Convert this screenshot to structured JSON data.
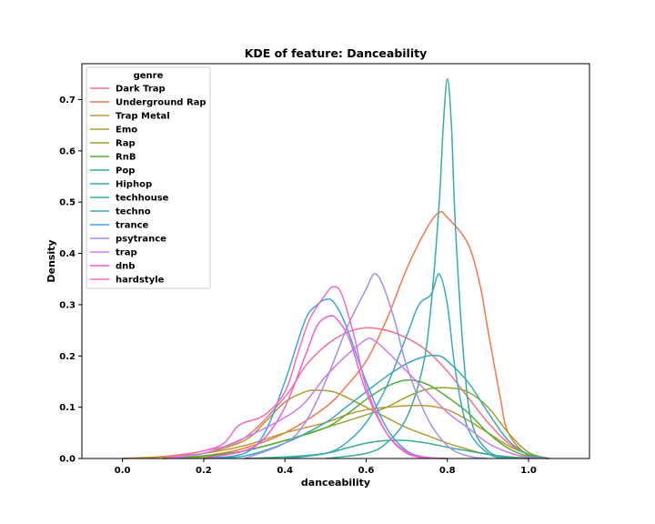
{
  "chart_data": {
    "type": "line",
    "title": "KDE of feature: Danceability",
    "xlabel": "danceability",
    "ylabel": "Density",
    "xlim": [
      -0.1,
      1.15
    ],
    "ylim": [
      0,
      0.77
    ],
    "xticks": [
      0.0,
      0.2,
      0.4,
      0.6,
      0.8,
      1.0
    ],
    "xtick_labels": [
      "0.0",
      "0.2",
      "0.4",
      "0.6",
      "0.8",
      "1.0"
    ],
    "yticks": [
      0.0,
      0.1,
      0.2,
      0.3,
      0.4,
      0.5,
      0.6,
      0.7
    ],
    "ytick_labels": [
      "0.0",
      "0.1",
      "0.2",
      "0.3",
      "0.4",
      "0.5",
      "0.6",
      "0.7"
    ],
    "grid": false,
    "legend": {
      "title": "genre",
      "placement": "upper-left"
    },
    "series": [
      {
        "name": "Dark Trap",
        "color": "#f77189",
        "points": [
          [
            0.0,
            0.0
          ],
          [
            0.1,
            0.004
          ],
          [
            0.2,
            0.015
          ],
          [
            0.3,
            0.04
          ],
          [
            0.4,
            0.12
          ],
          [
            0.45,
            0.18
          ],
          [
            0.5,
            0.22
          ],
          [
            0.55,
            0.245
          ],
          [
            0.6,
            0.255
          ],
          [
            0.65,
            0.25
          ],
          [
            0.7,
            0.235
          ],
          [
            0.75,
            0.21
          ],
          [
            0.8,
            0.17
          ],
          [
            0.85,
            0.12
          ],
          [
            0.9,
            0.07
          ],
          [
            0.95,
            0.03
          ],
          [
            1.0,
            0.008
          ],
          [
            1.05,
            0.0
          ]
        ]
      },
      {
        "name": "Underground Rap",
        "color": "#f7754f",
        "points": [
          [
            0.1,
            0.0
          ],
          [
            0.2,
            0.005
          ],
          [
            0.3,
            0.02
          ],
          [
            0.4,
            0.05
          ],
          [
            0.5,
            0.1
          ],
          [
            0.55,
            0.14
          ],
          [
            0.6,
            0.19
          ],
          [
            0.65,
            0.27
          ],
          [
            0.7,
            0.37
          ],
          [
            0.75,
            0.45
          ],
          [
            0.78,
            0.48
          ],
          [
            0.8,
            0.47
          ],
          [
            0.85,
            0.42
          ],
          [
            0.88,
            0.34
          ],
          [
            0.9,
            0.25
          ],
          [
            0.93,
            0.12
          ],
          [
            0.95,
            0.05
          ],
          [
            1.0,
            0.005
          ],
          [
            1.05,
            0.0
          ]
        ]
      },
      {
        "name": "Trap Metal",
        "color": "#c39532",
        "points": [
          [
            0.0,
            0.0
          ],
          [
            0.1,
            0.003
          ],
          [
            0.2,
            0.01
          ],
          [
            0.3,
            0.025
          ],
          [
            0.4,
            0.05
          ],
          [
            0.5,
            0.07
          ],
          [
            0.55,
            0.085
          ],
          [
            0.6,
            0.095
          ],
          [
            0.65,
            0.1
          ],
          [
            0.7,
            0.103
          ],
          [
            0.75,
            0.103
          ],
          [
            0.8,
            0.095
          ],
          [
            0.85,
            0.075
          ],
          [
            0.9,
            0.05
          ],
          [
            0.95,
            0.025
          ],
          [
            1.0,
            0.008
          ],
          [
            1.05,
            0.0
          ]
        ]
      },
      {
        "name": "Emo",
        "color": "#ae9d31",
        "points": [
          [
            0.1,
            0.0
          ],
          [
            0.2,
            0.01
          ],
          [
            0.3,
            0.035
          ],
          [
            0.35,
            0.07
          ],
          [
            0.4,
            0.11
          ],
          [
            0.45,
            0.13
          ],
          [
            0.48,
            0.133
          ],
          [
            0.52,
            0.13
          ],
          [
            0.55,
            0.12
          ],
          [
            0.6,
            0.1
          ],
          [
            0.65,
            0.08
          ],
          [
            0.7,
            0.06
          ],
          [
            0.75,
            0.045
          ],
          [
            0.8,
            0.03
          ],
          [
            0.85,
            0.018
          ],
          [
            0.9,
            0.008
          ],
          [
            1.0,
            0.0
          ]
        ]
      },
      {
        "name": "Rap",
        "color": "#97a431",
        "points": [
          [
            0.1,
            0.0
          ],
          [
            0.2,
            0.003
          ],
          [
            0.3,
            0.015
          ],
          [
            0.4,
            0.035
          ],
          [
            0.5,
            0.06
          ],
          [
            0.6,
            0.085
          ],
          [
            0.65,
            0.1
          ],
          [
            0.7,
            0.12
          ],
          [
            0.75,
            0.135
          ],
          [
            0.8,
            0.138
          ],
          [
            0.85,
            0.13
          ],
          [
            0.9,
            0.1
          ],
          [
            0.95,
            0.05
          ],
          [
            1.0,
            0.012
          ],
          [
            1.05,
            0.0
          ]
        ]
      },
      {
        "name": "RnB",
        "color": "#50b131",
        "points": [
          [
            0.1,
            0.0
          ],
          [
            0.2,
            0.005
          ],
          [
            0.3,
            0.015
          ],
          [
            0.4,
            0.035
          ],
          [
            0.5,
            0.06
          ],
          [
            0.55,
            0.085
          ],
          [
            0.6,
            0.115
          ],
          [
            0.65,
            0.14
          ],
          [
            0.7,
            0.153
          ],
          [
            0.75,
            0.145
          ],
          [
            0.8,
            0.12
          ],
          [
            0.85,
            0.09
          ],
          [
            0.9,
            0.05
          ],
          [
            0.95,
            0.02
          ],
          [
            1.0,
            0.004
          ],
          [
            1.05,
            0.0
          ]
        ]
      },
      {
        "name": "Pop",
        "color": "#34ae91",
        "points": [
          [
            0.3,
            0.0
          ],
          [
            0.4,
            0.003
          ],
          [
            0.5,
            0.01
          ],
          [
            0.55,
            0.02
          ],
          [
            0.6,
            0.03
          ],
          [
            0.65,
            0.035
          ],
          [
            0.7,
            0.035
          ],
          [
            0.75,
            0.03
          ],
          [
            0.8,
            0.022
          ],
          [
            0.85,
            0.015
          ],
          [
            0.9,
            0.008
          ],
          [
            0.95,
            0.003
          ],
          [
            1.0,
            0.0
          ]
        ]
      },
      {
        "name": "Hiphop",
        "color": "#37abb4",
        "points": [
          [
            0.2,
            0.0
          ],
          [
            0.3,
            0.005
          ],
          [
            0.4,
            0.03
          ],
          [
            0.5,
            0.07
          ],
          [
            0.55,
            0.1
          ],
          [
            0.6,
            0.13
          ],
          [
            0.65,
            0.16
          ],
          [
            0.7,
            0.185
          ],
          [
            0.75,
            0.2
          ],
          [
            0.78,
            0.2
          ],
          [
            0.8,
            0.19
          ],
          [
            0.85,
            0.15
          ],
          [
            0.9,
            0.09
          ],
          [
            0.95,
            0.035
          ],
          [
            1.0,
            0.008
          ],
          [
            1.05,
            0.0
          ]
        ]
      },
      {
        "name": "techhouse",
        "color": "#36ada4",
        "points": [
          [
            0.5,
            0.0
          ],
          [
            0.6,
            0.01
          ],
          [
            0.65,
            0.03
          ],
          [
            0.7,
            0.08
          ],
          [
            0.74,
            0.18
          ],
          [
            0.76,
            0.3
          ],
          [
            0.78,
            0.5
          ],
          [
            0.79,
            0.65
          ],
          [
            0.8,
            0.74
          ],
          [
            0.81,
            0.65
          ],
          [
            0.82,
            0.45
          ],
          [
            0.84,
            0.2
          ],
          [
            0.86,
            0.07
          ],
          [
            0.9,
            0.015
          ],
          [
            0.95,
            0.002
          ],
          [
            1.0,
            0.0
          ]
        ]
      },
      {
        "name": "techno",
        "color": "#38a9c5",
        "points": [
          [
            0.4,
            0.0
          ],
          [
            0.5,
            0.01
          ],
          [
            0.55,
            0.03
          ],
          [
            0.6,
            0.07
          ],
          [
            0.65,
            0.14
          ],
          [
            0.7,
            0.24
          ],
          [
            0.73,
            0.3
          ],
          [
            0.76,
            0.32
          ],
          [
            0.78,
            0.36
          ],
          [
            0.8,
            0.3
          ],
          [
            0.82,
            0.17
          ],
          [
            0.85,
            0.06
          ],
          [
            0.9,
            0.01
          ],
          [
            0.95,
            0.0
          ]
        ]
      },
      {
        "name": "trance",
        "color": "#3ba3ec",
        "points": [
          [
            0.2,
            0.0
          ],
          [
            0.3,
            0.01
          ],
          [
            0.35,
            0.05
          ],
          [
            0.4,
            0.15
          ],
          [
            0.45,
            0.27
          ],
          [
            0.48,
            0.3
          ],
          [
            0.5,
            0.31
          ],
          [
            0.52,
            0.305
          ],
          [
            0.55,
            0.26
          ],
          [
            0.6,
            0.15
          ],
          [
            0.65,
            0.06
          ],
          [
            0.7,
            0.015
          ],
          [
            0.75,
            0.002
          ],
          [
            0.8,
            0.0
          ]
        ]
      },
      {
        "name": "psytrance",
        "color": "#a48cf4",
        "points": [
          [
            0.3,
            0.0
          ],
          [
            0.4,
            0.03
          ],
          [
            0.45,
            0.07
          ],
          [
            0.5,
            0.15
          ],
          [
            0.55,
            0.25
          ],
          [
            0.58,
            0.3
          ],
          [
            0.6,
            0.33
          ],
          [
            0.62,
            0.36
          ],
          [
            0.64,
            0.34
          ],
          [
            0.67,
            0.27
          ],
          [
            0.7,
            0.18
          ],
          [
            0.75,
            0.08
          ],
          [
            0.8,
            0.025
          ],
          [
            0.85,
            0.005
          ],
          [
            0.9,
            0.0
          ]
        ]
      },
      {
        "name": "trap",
        "color": "#cc7af4",
        "points": [
          [
            0.1,
            0.0
          ],
          [
            0.2,
            0.01
          ],
          [
            0.3,
            0.04
          ],
          [
            0.4,
            0.08
          ],
          [
            0.45,
            0.11
          ],
          [
            0.5,
            0.16
          ],
          [
            0.55,
            0.2
          ],
          [
            0.6,
            0.232
          ],
          [
            0.62,
            0.23
          ],
          [
            0.65,
            0.21
          ],
          [
            0.7,
            0.17
          ],
          [
            0.75,
            0.13
          ],
          [
            0.8,
            0.09
          ],
          [
            0.85,
            0.06
          ],
          [
            0.9,
            0.03
          ],
          [
            0.95,
            0.012
          ],
          [
            1.0,
            0.002
          ],
          [
            1.05,
            0.0
          ]
        ]
      },
      {
        "name": "dnb",
        "color": "#f45cde",
        "points": [
          [
            0.2,
            0.0
          ],
          [
            0.3,
            0.015
          ],
          [
            0.35,
            0.04
          ],
          [
            0.4,
            0.1
          ],
          [
            0.45,
            0.2
          ],
          [
            0.48,
            0.26
          ],
          [
            0.51,
            0.278
          ],
          [
            0.53,
            0.27
          ],
          [
            0.56,
            0.23
          ],
          [
            0.6,
            0.13
          ],
          [
            0.65,
            0.05
          ],
          [
            0.7,
            0.012
          ],
          [
            0.75,
            0.002
          ],
          [
            0.8,
            0.0
          ]
        ]
      },
      {
        "name": "hardstyle",
        "color": "#f56cbe",
        "points": [
          [
            0.1,
            0.0
          ],
          [
            0.2,
            0.015
          ],
          [
            0.25,
            0.03
          ],
          [
            0.28,
            0.06
          ],
          [
            0.3,
            0.07
          ],
          [
            0.35,
            0.085
          ],
          [
            0.4,
            0.13
          ],
          [
            0.43,
            0.2
          ],
          [
            0.46,
            0.27
          ],
          [
            0.5,
            0.32
          ],
          [
            0.52,
            0.335
          ],
          [
            0.54,
            0.32
          ],
          [
            0.57,
            0.24
          ],
          [
            0.6,
            0.14
          ],
          [
            0.65,
            0.05
          ],
          [
            0.7,
            0.01
          ],
          [
            0.75,
            0.0
          ]
        ]
      }
    ]
  }
}
